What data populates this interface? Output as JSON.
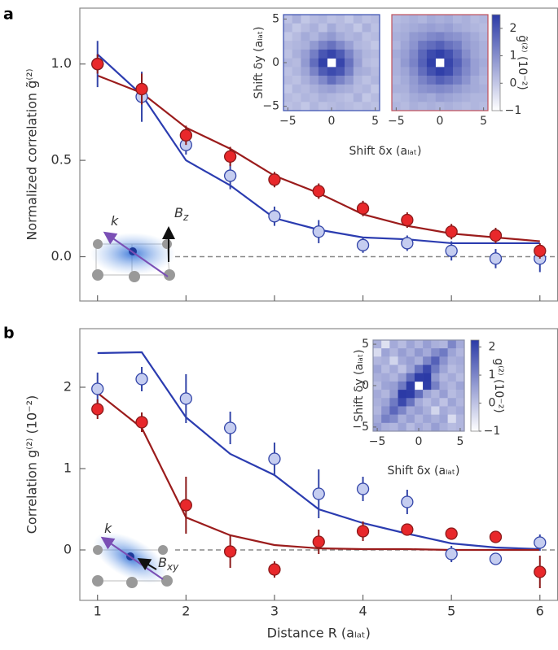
{
  "chart_data": [
    {
      "type": "line",
      "panel": "a",
      "ylabel": "Normalized correlation g̃⁽²⁾",
      "xlim": [
        0.8,
        6.2
      ],
      "ylim": [
        -0.23,
        1.29
      ],
      "xticks": [
        1,
        2,
        3,
        4,
        5,
        6
      ],
      "show_xtick_labels": false,
      "yticks": [
        {
          "value": 0,
          "label": "0.0"
        },
        {
          "value": 0.5,
          "label": "0.5"
        },
        {
          "value": 1,
          "label": "1.0"
        }
      ],
      "zero_line": true,
      "x": [
        1,
        1.5,
        2,
        2.5,
        3,
        3.5,
        4,
        4.5,
        5,
        5.5,
        6
      ],
      "series": [
        {
          "mode": "line",
          "color": "#2b3cb0",
          "values": [
            1.05,
            0.84,
            0.5,
            0.37,
            0.2,
            0.14,
            0.1,
            0.09,
            0.07,
            0.07,
            0.07
          ]
        },
        {
          "mode": "line",
          "color": "#9b1c1c",
          "values": [
            0.94,
            0.85,
            0.67,
            0.56,
            0.42,
            0.33,
            0.22,
            0.16,
            0.12,
            0.1,
            0.08
          ]
        },
        {
          "mode": "markers",
          "color": "#3345a8",
          "fill": "#c5cdf0",
          "values": [
            1.0,
            0.83,
            0.58,
            0.42,
            0.21,
            0.13,
            0.06,
            0.07,
            0.03,
            -0.01,
            -0.01
          ],
          "errors": [
            0.12,
            0.13,
            0.05,
            0.07,
            0.05,
            0.06,
            0.04,
            0.04,
            0.05,
            0.05,
            0.07
          ]
        },
        {
          "mode": "markers",
          "color": "#8b1a1a",
          "fill": "#e8282b",
          "values": [
            1.0,
            0.87,
            0.63,
            0.52,
            0.4,
            0.34,
            0.25,
            0.19,
            0.13,
            0.11,
            0.03
          ],
          "errors": [
            0.05,
            0.08,
            0.05,
            0.05,
            0.04,
            0.04,
            0.04,
            0.04,
            0.04,
            0.04,
            0.04
          ]
        }
      ],
      "annotations": [
        {
          "text": "k"
        },
        {
          "text": "B",
          "sub": "z"
        }
      ],
      "inset": {
        "xlabel": "Shift δx (aₗₐₜ)",
        "ylabel": "Shift δy (aₗₐₜ)",
        "xlim": [
          -5.5,
          5.5
        ],
        "ylim": [
          -5.5,
          5.5
        ],
        "yticks": [
          {
            "value": -5,
            "label": "−5"
          },
          0,
          5
        ],
        "cmap": [
          "#ffffff",
          "#2b3aa6"
        ],
        "colorbar": {
          "lim": [
            -1,
            2.5
          ],
          "ticks": [
            {
              "value": -1,
              "label": "−1"
            },
            0,
            1,
            2
          ],
          "label": "g̃⁽²⁾ (10⁻²)"
        },
        "heatmaps": [
          {
            "border": "#3a4fb0",
            "xticks": [
              {
                "value": -5,
                "label": "−5"
              },
              0,
              5
            ],
            "z": [
              [
                0.1,
                0.4,
                0,
                0.2,
                0.3,
                0.1,
                0.2,
                0,
                0.3,
                0.1,
                0.2
              ],
              [
                0.3,
                0,
                0.2,
                0.4,
                0.1,
                0.5,
                0.2,
                0.3,
                0,
                0.4,
                0.1
              ],
              [
                0,
                0.2,
                0.5,
                0.3,
                0.6,
                0.8,
                0.5,
                0.3,
                0.4,
                0.1,
                0.2
              ],
              [
                0.2,
                0.3,
                0.4,
                0.8,
                1.2,
                1.5,
                1.1,
                0.7,
                0.3,
                0.2,
                0
              ],
              [
                0.1,
                0.4,
                0.7,
                1.3,
                2.0,
                2.3,
                1.9,
                1.2,
                0.6,
                0.3,
                0.2
              ],
              [
                0.3,
                0.2,
                0.8,
                1.6,
                2.4,
                null,
                2.3,
                1.5,
                0.7,
                0.2,
                0.1
              ],
              [
                0.1,
                0.3,
                0.6,
                1.2,
                1.9,
                2.2,
                2.0,
                1.3,
                0.5,
                0.4,
                0.2
              ],
              [
                0.2,
                0.1,
                0.4,
                0.7,
                1.1,
                1.6,
                1.2,
                0.8,
                0.3,
                0.1,
                0.3
              ],
              [
                0,
                0.3,
                0.2,
                0.4,
                0.6,
                0.7,
                0.5,
                0.4,
                0.2,
                0.3,
                0
              ],
              [
                0.2,
                0.1,
                0.3,
                0.2,
                0.4,
                0.3,
                0.2,
                0.1,
                0.4,
                0,
                0.2
              ],
              [
                0.1,
                0.2,
                0,
                0.3,
                0.1,
                0.2,
                0.3,
                0.2,
                0.1,
                0.2,
                0.1
              ]
            ]
          },
          {
            "border": "#c0505a",
            "xticks": [
              {
                "value": -5,
                "label": "−5"
              },
              0,
              5
            ],
            "z": [
              [
                0.2,
                0.3,
                0.4,
                0.3,
                0.5,
                0.4,
                0.5,
                0.3,
                0.4,
                0.2,
                0.3
              ],
              [
                0.3,
                0.4,
                0.5,
                0.6,
                0.7,
                0.6,
                0.7,
                0.5,
                0.4,
                0.3,
                0.2
              ],
              [
                0.4,
                0.5,
                0.8,
                0.9,
                1.1,
                1.2,
                1.0,
                0.9,
                0.7,
                0.5,
                0.3
              ],
              [
                0.3,
                0.6,
                0.9,
                1.4,
                1.6,
                1.8,
                1.5,
                1.3,
                0.8,
                0.6,
                0.4
              ],
              [
                0.5,
                0.7,
                1.1,
                1.7,
                2.2,
                2.4,
                2.1,
                1.6,
                1.0,
                0.6,
                0.4
              ],
              [
                0.4,
                0.8,
                1.2,
                1.8,
                2.4,
                null,
                2.3,
                1.8,
                1.2,
                0.7,
                0.5
              ],
              [
                0.4,
                0.6,
                1.0,
                1.6,
                2.1,
                2.4,
                2.2,
                1.6,
                1.1,
                0.7,
                0.4
              ],
              [
                0.3,
                0.5,
                0.8,
                1.2,
                1.5,
                1.8,
                1.6,
                1.3,
                0.9,
                0.5,
                0.3
              ],
              [
                0.4,
                0.4,
                0.7,
                0.9,
                1.0,
                1.1,
                1.0,
                0.8,
                0.6,
                0.5,
                0.4
              ],
              [
                0.2,
                0.3,
                0.5,
                0.6,
                0.5,
                0.7,
                0.6,
                0.5,
                0.4,
                0.3,
                0.3
              ],
              [
                0.3,
                0.2,
                0.4,
                0.3,
                0.4,
                0.3,
                0.4,
                0.3,
                0.2,
                0.3,
                0.2
              ]
            ]
          }
        ]
      }
    },
    {
      "type": "line",
      "panel": "b",
      "ylabel": "Correlation g⁽²⁾ (10⁻²)",
      "xlabel": "Distance R (aₗₐₜ)",
      "xlim": [
        0.8,
        6.2
      ],
      "ylim": [
        -0.62,
        2.72
      ],
      "xticks": [
        1,
        2,
        3,
        4,
        5,
        6
      ],
      "show_xtick_labels": true,
      "yticks": [
        0,
        1,
        2
      ],
      "zero_line": true,
      "x": [
        1,
        1.5,
        2,
        2.5,
        3,
        3.5,
        4,
        4.5,
        5,
        5.5,
        6
      ],
      "series": [
        {
          "mode": "line",
          "color": "#2b3cb0",
          "values": [
            2.42,
            2.43,
            1.63,
            1.18,
            0.92,
            0.5,
            0.33,
            0.2,
            0.08,
            0.03,
            0.01
          ]
        },
        {
          "mode": "line",
          "color": "#9b1c1c",
          "values": [
            1.93,
            1.5,
            0.4,
            0.18,
            0.06,
            0.02,
            0.01,
            0.01,
            0,
            0,
            0
          ]
        },
        {
          "mode": "markers",
          "color": "#3345a8",
          "fill": "#c5cdf0",
          "values": [
            1.98,
            2.1,
            1.86,
            1.5,
            1.12,
            0.69,
            0.75,
            0.59,
            -0.05,
            -0.11,
            0.09
          ],
          "errors": [
            0.2,
            0.15,
            0.3,
            0.2,
            0.2,
            0.3,
            0.15,
            0.15,
            0.1,
            0,
            0.1
          ]
        },
        {
          "mode": "markers",
          "color": "#8b1a1a",
          "fill": "#e8282b",
          "values": [
            1.73,
            1.57,
            0.55,
            -0.02,
            -0.24,
            0.1,
            0.23,
            0.25,
            0.2,
            0.16,
            -0.27
          ],
          "errors": [
            0.12,
            0.12,
            0.35,
            0.2,
            0.1,
            0.15,
            0.12,
            0.05,
            0,
            0,
            0.2
          ]
        }
      ],
      "annotations": [
        {
          "text": "k"
        },
        {
          "text": "B",
          "sub": "xy"
        }
      ],
      "inset": {
        "xlabel": "Shift δx (aₗₐₜ)",
        "ylabel": "Shift δy (aₗₐₜ)",
        "xlim": [
          -5.5,
          5.5
        ],
        "ylim": [
          -5.5,
          5.5
        ],
        "yticks": [
          {
            "value": -5,
            "label": "−5"
          },
          0,
          5
        ],
        "cmap": [
          "#ffffff",
          "#2b3aa6"
        ],
        "colorbar": {
          "lim": [
            -1,
            2.25
          ],
          "ticks": [
            {
              "value": -1,
              "label": "−1"
            },
            0,
            1,
            2
          ],
          "label": "g⁽²⁾ (10⁻²)"
        },
        "heatmaps": [
          {
            "border": "#8a8fa8",
            "xticks": [
              {
                "value": -5,
                "label": "−5"
              },
              0,
              5
            ],
            "z": [
              [
                0.3,
                -0.5,
                0.4,
                0.1,
                0.5,
                0.2,
                0.6,
                0.3,
                0.2,
                1.0,
                0.4
              ],
              [
                -0.4,
                0.5,
                0.2,
                0.6,
                0.3,
                0.7,
                0.4,
                0.9,
                1.2,
                0.5,
                0.2
              ],
              [
                0.2,
                0.3,
                -0.3,
                0.4,
                0.6,
                0.3,
                1.0,
                1.6,
                0.8,
                0.3,
                0.4
              ],
              [
                0.5,
                0.1,
                0.4,
                0.0,
                0.5,
                1.3,
                2.0,
                1.2,
                0.5,
                0.1,
                0.3
              ],
              [
                0.3,
                0.4,
                0.2,
                0.6,
                1.4,
                2.2,
                2.3,
                0.7,
                0.2,
                0.4,
                0.1
              ],
              [
                0.1,
                0.5,
                0.6,
                1.2,
                2.2,
                null,
                2.2,
                1.1,
                0.4,
                0.2,
                0.5
              ],
              [
                0.4,
                0.2,
                0.7,
                2.3,
                2.2,
                1.4,
                0.5,
                0.2,
                0.6,
                0.1,
                0.3
              ],
              [
                0.3,
                0.5,
                1.2,
                2.0,
                1.3,
                0.4,
                0.1,
                0.4,
                0.0,
                0.5,
                0.2
              ],
              [
                0.2,
                0.8,
                1.5,
                1.0,
                0.4,
                0.6,
                0.3,
                -0.3,
                0.4,
                0.2,
                0.4
              ],
              [
                0.4,
                1.1,
                0.9,
                0.3,
                0.6,
                0.2,
                0.5,
                0.3,
                0.5,
                -0.4,
                0.2
              ],
              [
                0.6,
                0.3,
                0.2,
                0.5,
                0.1,
                0.4,
                0.2,
                0.6,
                0.3,
                0.1,
                0.2
              ]
            ]
          }
        ]
      }
    }
  ]
}
